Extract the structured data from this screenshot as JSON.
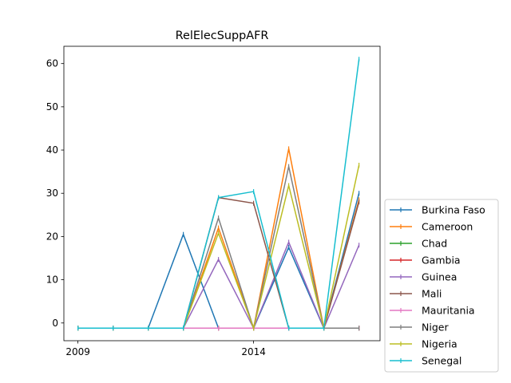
{
  "chart_data": {
    "type": "line",
    "title": "RelElecSuppAFR",
    "xlabel": "",
    "ylabel": "",
    "x": [
      2009,
      2010,
      2011,
      2012,
      2013,
      2014,
      2015,
      2016,
      2017
    ],
    "xticks": [
      2009,
      2014
    ],
    "xtick_labels": [
      "2009",
      "2014"
    ],
    "xlim": [
      2008.6,
      2017.6
    ],
    "yticks": [
      0,
      10,
      20,
      30,
      40,
      50,
      60
    ],
    "ytick_labels": [
      "0",
      "10",
      "20",
      "30",
      "40",
      "50",
      "60"
    ],
    "ylim": [
      -4.1,
      64.0
    ],
    "grid": false,
    "legend_position": "lower right, outside plot",
    "series": [
      {
        "name": "Burkina Faso",
        "color": "#1f77b4",
        "values": [
          -1.2,
          -1.2,
          -1.2,
          20.5,
          -1.2,
          -1.2,
          17.5,
          -1.2,
          30.0
        ]
      },
      {
        "name": "Cameroon",
        "color": "#ff7f0e",
        "values": [
          -1.2,
          -1.2,
          -1.2,
          -1.2,
          22.0,
          -1.2,
          40.3,
          -1.2,
          28.5
        ]
      },
      {
        "name": "Chad",
        "color": "#2ca02c",
        "values": [
          -1.2,
          -1.2,
          -1.2,
          -1.2,
          -1.2,
          -1.2,
          -1.2,
          -1.2,
          -1.2
        ]
      },
      {
        "name": "Gambia",
        "color": "#d62728",
        "values": [
          -1.2,
          -1.2,
          -1.2,
          -1.2,
          -1.2,
          -1.2,
          -1.2,
          -1.2,
          -1.2
        ]
      },
      {
        "name": "Guinea",
        "color": "#9467bd",
        "values": [
          -1.2,
          -1.2,
          -1.2,
          -1.2,
          14.7,
          -1.2,
          18.7,
          -1.2,
          18.0
        ]
      },
      {
        "name": "Mali",
        "color": "#8c564b",
        "values": [
          -1.2,
          -1.2,
          -1.2,
          -1.2,
          29.0,
          27.7,
          -1.2,
          -1.2,
          28.0
        ]
      },
      {
        "name": "Mauritania",
        "color": "#e377c2",
        "values": [
          -1.2,
          -1.2,
          -1.2,
          -1.2,
          -1.2,
          -1.2,
          -1.2,
          -1.2,
          -1.2
        ]
      },
      {
        "name": "Niger",
        "color": "#7f7f7f",
        "values": [
          -1.2,
          -1.2,
          -1.2,
          -1.2,
          24.3,
          -1.2,
          36.2,
          -1.2,
          -1.2
        ]
      },
      {
        "name": "Nigeria",
        "color": "#bcbd22",
        "values": [
          -1.2,
          -1.2,
          -1.2,
          -1.2,
          20.8,
          -1.2,
          31.8,
          -1.2,
          36.5
        ]
      },
      {
        "name": "Senegal",
        "color": "#17becf",
        "values": [
          -1.2,
          -1.2,
          -1.2,
          -1.2,
          29.0,
          30.4,
          -1.2,
          -1.2,
          61.0
        ]
      }
    ]
  }
}
